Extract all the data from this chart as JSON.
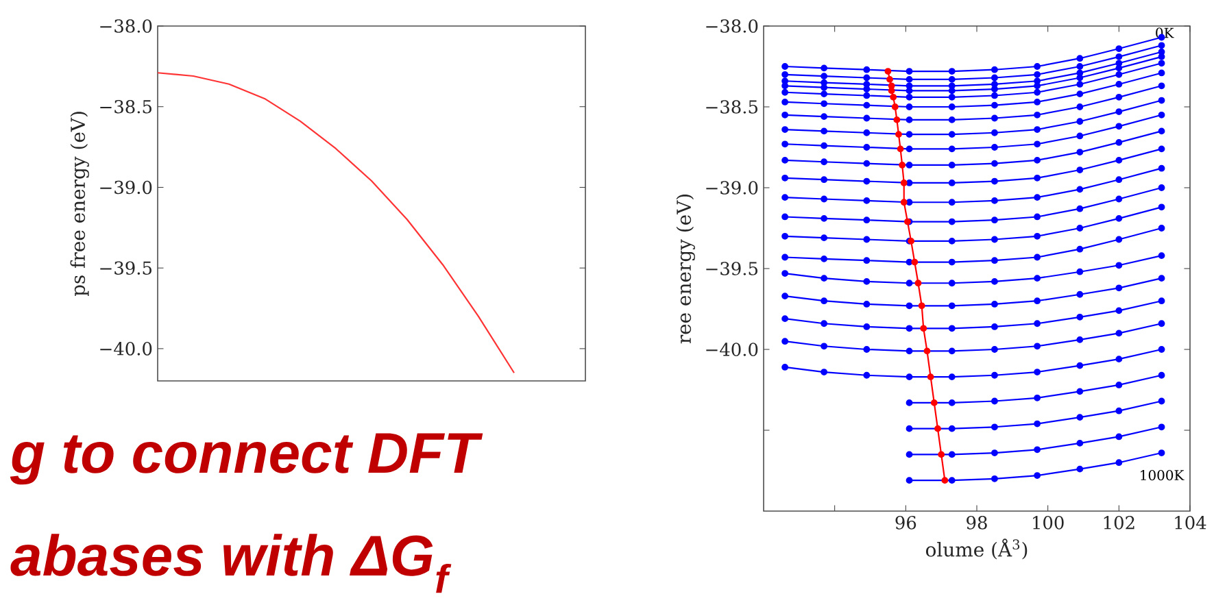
{
  "chart_data": [
    {
      "type": "line",
      "ylabel": "ps free energy (eV)",
      "tick_labels": "y",
      "annotations": [
        "g to connect DFT",
        "abases with ΔG$_{f}$"
      ],
      "categories": [
        null,
        null,
        null,
        null,
        null,
        null,
        null,
        null,
        null,
        null,
        null,
        null,
        null
      ],
      "series": [
        {
          "color": "#ff3333",
          "values": [
            -38.29,
            -38.31,
            -38.36,
            -38.45,
            -38.59,
            -38.76,
            -38.96,
            -39.2,
            -39.48,
            -39.8,
            -40.15,
            null,
            null
          ]
        }
      ],
      "ylim": [
        -40.2,
        -38.0
      ],
      "yticks": [
        {
          "value": -38.0,
          "label": "−38.0"
        },
        {
          "value": -38.5,
          "label": "−38.5"
        },
        {
          "value": -39.0,
          "label": "−39.0"
        },
        {
          "value": -39.5,
          "label": "−39.5"
        },
        {
          "value": -40.0,
          "label": "−40.0"
        }
      ]
    },
    {
      "type": "line",
      "marker": "circle",
      "xlabel": "olume (Å$^{3}$)",
      "ylabel": "ree energy (eV)",
      "annotations": [
        "0K",
        "1000K"
      ],
      "x": [
        92.6,
        93.7,
        94.9,
        96.1,
        97.3,
        98.5,
        99.7,
        100.9,
        102.0,
        103.2
      ],
      "series": [
        {
          "color": "#0000ff",
          "values": [
            -38.25,
            -38.26,
            -38.27,
            -38.28,
            -38.28,
            -38.27,
            -38.25,
            -38.2,
            -38.14,
            -38.07
          ]
        },
        {
          "color": "#0000ff",
          "values": [
            -38.3,
            -38.31,
            -38.32,
            -38.33,
            -38.33,
            -38.32,
            -38.3,
            -38.25,
            -38.19,
            -38.12
          ]
        },
        {
          "color": "#0000ff",
          "values": [
            -38.34,
            -38.35,
            -38.36,
            -38.37,
            -38.37,
            -38.36,
            -38.34,
            -38.29,
            -38.23,
            -38.16
          ]
        },
        {
          "color": "#0000ff",
          "values": [
            -38.37,
            -38.38,
            -38.39,
            -38.4,
            -38.4,
            -38.39,
            -38.37,
            -38.32,
            -38.26,
            -38.19
          ]
        },
        {
          "color": "#0000ff",
          "values": [
            -38.41,
            -38.42,
            -38.43,
            -38.44,
            -38.44,
            -38.43,
            -38.41,
            -38.36,
            -38.3,
            -38.23
          ]
        },
        {
          "color": "#0000ff",
          "values": [
            -38.47,
            -38.48,
            -38.49,
            -38.5,
            -38.5,
            -38.49,
            -38.47,
            -38.42,
            -38.36,
            -38.29
          ]
        },
        {
          "color": "#0000ff",
          "values": [
            -38.55,
            -38.56,
            -38.57,
            -38.58,
            -38.58,
            -38.57,
            -38.55,
            -38.5,
            -38.44,
            -38.37
          ]
        },
        {
          "color": "#0000ff",
          "values": [
            -38.64,
            -38.65,
            -38.66,
            -38.67,
            -38.67,
            -38.66,
            -38.64,
            -38.59,
            -38.53,
            -38.46
          ]
        },
        {
          "color": "#0000ff",
          "values": [
            -38.73,
            -38.74,
            -38.75,
            -38.76,
            -38.76,
            -38.75,
            -38.73,
            -38.68,
            -38.62,
            -38.55
          ]
        },
        {
          "color": "#0000ff",
          "values": [
            -38.83,
            -38.84,
            -38.85,
            -38.86,
            -38.86,
            -38.85,
            -38.83,
            -38.78,
            -38.72,
            -38.65
          ]
        },
        {
          "color": "#0000ff",
          "values": [
            -38.94,
            -38.95,
            -38.96,
            -38.97,
            -38.97,
            -38.96,
            -38.94,
            -38.89,
            -38.83,
            -38.76
          ]
        },
        {
          "color": "#0000ff",
          "values": [
            -39.06,
            -39.07,
            -39.08,
            -39.09,
            -39.09,
            -39.08,
            -39.06,
            -39.01,
            -38.95,
            -38.88
          ]
        },
        {
          "color": "#0000ff",
          "values": [
            -39.18,
            -39.19,
            -39.2,
            -39.21,
            -39.21,
            -39.2,
            -39.18,
            -39.13,
            -39.07,
            -39.0
          ]
        },
        {
          "color": "#0000ff",
          "values": [
            -39.3,
            -39.31,
            -39.32,
            -39.33,
            -39.33,
            -39.32,
            -39.3,
            -39.25,
            -39.19,
            -39.12
          ]
        },
        {
          "color": "#0000ff",
          "values": [
            -39.43,
            -39.44,
            -39.45,
            -39.46,
            -39.46,
            -39.45,
            -39.43,
            -39.38,
            -39.32,
            -39.25
          ]
        },
        {
          "color": "#0000ff",
          "values": [
            -39.53,
            -39.56,
            -39.58,
            -39.59,
            -39.59,
            -39.58,
            -39.56,
            -39.52,
            -39.48,
            -39.42
          ]
        },
        {
          "color": "#0000ff",
          "values": [
            -39.67,
            -39.7,
            -39.72,
            -39.73,
            -39.73,
            -39.72,
            -39.7,
            -39.66,
            -39.62,
            -39.56
          ]
        },
        {
          "color": "#0000ff",
          "values": [
            -39.81,
            -39.84,
            -39.86,
            -39.87,
            -39.87,
            -39.86,
            -39.84,
            -39.8,
            -39.76,
            -39.7
          ]
        },
        {
          "color": "#0000ff",
          "values": [
            -39.95,
            -39.98,
            -40.0,
            -40.01,
            -40.01,
            -40.0,
            -39.98,
            -39.94,
            -39.9,
            -39.84
          ]
        },
        {
          "color": "#0000ff",
          "values": [
            -40.11,
            -40.14,
            -40.16,
            -40.17,
            -40.17,
            -40.16,
            -40.14,
            -40.1,
            -40.06,
            -40.0
          ]
        },
        {
          "color": "#0000ff",
          "values": [
            null,
            null,
            null,
            -40.33,
            -40.33,
            -40.32,
            -40.3,
            -40.26,
            -40.22,
            -40.16
          ]
        },
        {
          "color": "#0000ff",
          "values": [
            null,
            null,
            null,
            -40.49,
            -40.49,
            -40.48,
            -40.46,
            -40.42,
            -40.38,
            -40.32
          ]
        },
        {
          "color": "#0000ff",
          "values": [
            null,
            null,
            null,
            -40.65,
            -40.65,
            -40.64,
            -40.62,
            -40.58,
            -40.54,
            -40.48
          ]
        },
        {
          "color": "#0000ff",
          "values": [
            null,
            null,
            null,
            -40.81,
            -40.81,
            -40.8,
            -40.78,
            -40.74,
            -40.7,
            -40.64
          ]
        },
        {
          "color": "#ff0000",
          "x": [
            95.5,
            95.55,
            95.6,
            95.6,
            95.65,
            95.7,
            95.75,
            95.8,
            95.85,
            95.9,
            95.95,
            95.95,
            96.05,
            96.15,
            96.25,
            96.35,
            96.45,
            96.5,
            96.6,
            96.7,
            96.8,
            96.9,
            97.0,
            97.1
          ],
          "values": [
            -38.28,
            -38.33,
            -38.37,
            -38.4,
            -38.44,
            -38.5,
            -38.58,
            -38.67,
            -38.76,
            -38.86,
            -38.97,
            -39.09,
            -39.21,
            -39.33,
            -39.46,
            -39.59,
            -39.73,
            -39.87,
            -40.01,
            -40.17,
            -40.33,
            -40.49,
            -40.65,
            -40.81
          ]
        }
      ],
      "xlim": [
        92,
        104
      ],
      "xticks": [
        {
          "value": 94,
          "label": null
        },
        96,
        98,
        100,
        102,
        104
      ],
      "ylim": [
        -41.0,
        -38.0
      ],
      "yticks": [
        {
          "value": -38.0,
          "label": "−38.0"
        },
        {
          "value": -38.5,
          "label": "−38.5"
        },
        {
          "value": -39.0,
          "label": "−39.0"
        },
        {
          "value": -39.5,
          "label": "−39.5"
        },
        {
          "value": -40.0,
          "label": "−40.0"
        },
        {
          "value": -40.5,
          "label": null
        }
      ]
    }
  ]
}
